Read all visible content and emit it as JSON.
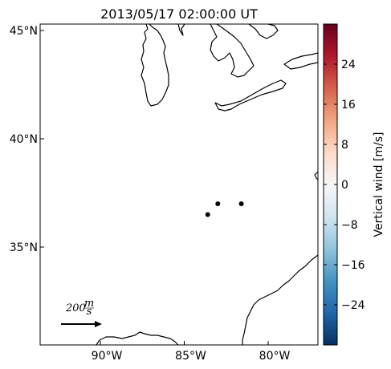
{
  "title": "2013/05/17 02:00:00 UT",
  "map": {
    "lat_ticks": [
      {
        "value": 45,
        "label": "45°N"
      },
      {
        "value": 40,
        "label": "40°N"
      },
      {
        "value": 35,
        "label": "35°N"
      }
    ],
    "lon_ticks": [
      {
        "value": -90,
        "label": "90°W"
      },
      {
        "value": -85,
        "label": "85°W"
      },
      {
        "value": -80,
        "label": "80°W"
      }
    ],
    "extent": {
      "lon": [
        -93.6,
        -76.9
      ],
      "lat": [
        30.6,
        45.2
      ]
    },
    "station_markers": [
      {
        "lon": -83.6,
        "lat": 36.5
      },
      {
        "lon": -83.0,
        "lat": 37.0
      },
      {
        "lon": -81.6,
        "lat": 37.0
      }
    ],
    "reference_vector": {
      "label_value": "200",
      "label_unit_num": "m",
      "label_unit_den": "s"
    }
  },
  "colorbar": {
    "label": "Vertical wind [m/s]",
    "range": [
      -32,
      32
    ],
    "ticks": [
      {
        "value": 24,
        "label": "24"
      },
      {
        "value": 16,
        "label": "16"
      },
      {
        "value": 8,
        "label": "8"
      },
      {
        "value": 0,
        "label": "0"
      },
      {
        "value": -8,
        "label": "−8"
      },
      {
        "value": -16,
        "label": "−16"
      },
      {
        "value": -24,
        "label": "−24"
      }
    ],
    "colormap": "RdBu_r",
    "colors": [
      "#053061",
      "#2166ac",
      "#4393c3",
      "#92c5de",
      "#d1e5f0",
      "#f7f7f7",
      "#fddbc7",
      "#f4a582",
      "#d6604d",
      "#b2182b",
      "#67001f"
    ]
  }
}
